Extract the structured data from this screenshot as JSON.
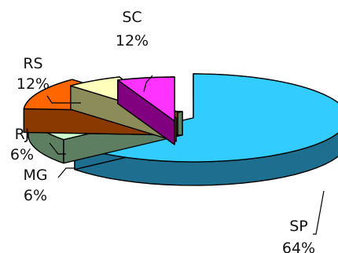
{
  "chart_data": {
    "type": "pie",
    "title": "",
    "exploded_3d": true,
    "legend": "none",
    "slices": [
      {
        "label": "SP",
        "percent_label": "64%",
        "value": 64,
        "color": "#33CCFF",
        "side_color": "#1E6E8F"
      },
      {
        "label": "SC",
        "percent_label": "12%",
        "value": 12,
        "color": "#CCFFCC",
        "side_color": "#5E7E62"
      },
      {
        "label": "RS",
        "percent_label": "12%",
        "value": 12,
        "color": "#FF6600",
        "side_color": "#8A3A00"
      },
      {
        "label": "RJ",
        "percent_label": "6%",
        "value": 6,
        "color": "#FFFFBB",
        "side_color": "#8C8C5A"
      },
      {
        "label": "MG",
        "percent_label": "6%",
        "value": 6,
        "color": "#FF33FF",
        "side_color": "#800080"
      }
    ]
  }
}
